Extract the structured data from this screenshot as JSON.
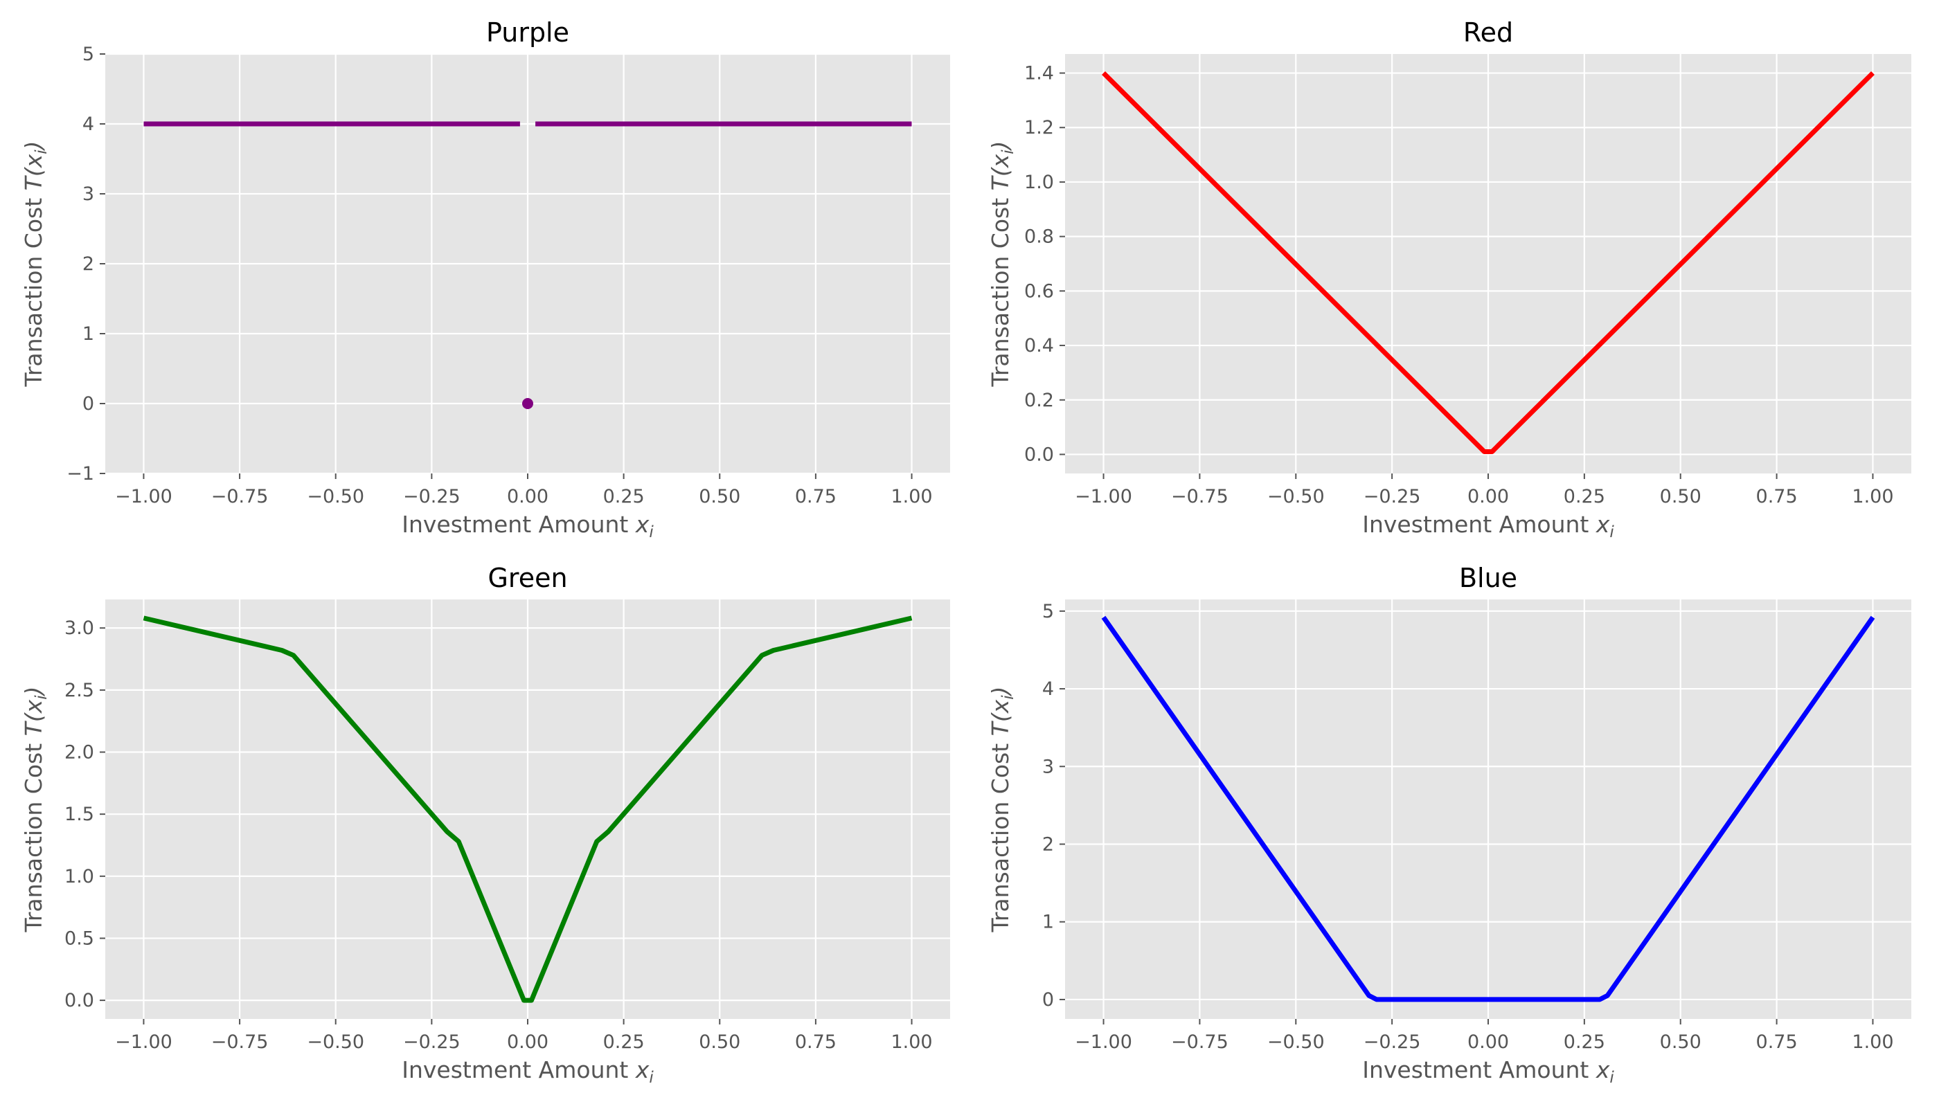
{
  "figure": {
    "background": "#ffffff",
    "axes_background": "#e5e5e5",
    "grid_color": "#ffffff"
  },
  "chart_data": [
    {
      "type": "line",
      "title": "Purple",
      "color": "#800080",
      "xlabel_text": "Investment Amount ",
      "xlabel_var": "x",
      "xlabel_sub": "i",
      "ylabel_text": "Transaction Cost ",
      "ylabel_var": "T(x",
      "ylabel_sub": "i",
      "ylabel_close": ")",
      "xlim": [
        -1.1,
        1.1
      ],
      "ylim": [
        -1,
        5
      ],
      "grid": true,
      "x_ticks": [
        -1.0,
        -0.75,
        -0.5,
        -0.25,
        0.0,
        0.25,
        0.5,
        0.75,
        1.0
      ],
      "x_tick_labels": [
        "−1.00",
        "−0.75",
        "−0.50",
        "−0.25",
        "0.00",
        "0.25",
        "0.50",
        "0.75",
        "1.00"
      ],
      "y_ticks": [
        -1,
        0,
        1,
        2,
        3,
        4,
        5
      ],
      "y_tick_labels": [
        "−1",
        "0",
        "1",
        "2",
        "3",
        "4",
        "5"
      ],
      "series": [
        {
          "x": [
            -1.0,
            -0.02
          ],
          "y": [
            4,
            4
          ]
        },
        {
          "x": [
            0.02,
            1.0
          ],
          "y": [
            4,
            4
          ]
        }
      ],
      "points": [
        {
          "x": 0.0,
          "y": 0.0
        }
      ]
    },
    {
      "type": "line",
      "title": "Red",
      "color": "#ff0000",
      "xlabel_text": "Investment Amount ",
      "xlabel_var": "x",
      "xlabel_sub": "i",
      "ylabel_text": "Transaction Cost ",
      "ylabel_var": "T(x",
      "ylabel_sub": "i",
      "ylabel_close": ")",
      "xlim": [
        -1.1,
        1.1
      ],
      "ylim": [
        -0.07,
        1.47
      ],
      "grid": true,
      "x_ticks": [
        -1.0,
        -0.75,
        -0.5,
        -0.25,
        0.0,
        0.25,
        0.5,
        0.75,
        1.0
      ],
      "x_tick_labels": [
        "−1.00",
        "−0.75",
        "−0.50",
        "−0.25",
        "0.00",
        "0.25",
        "0.50",
        "0.75",
        "1.00"
      ],
      "y_ticks": [
        0.0,
        0.2,
        0.4,
        0.6,
        0.8,
        1.0,
        1.2,
        1.4
      ],
      "y_tick_labels": [
        "0.0",
        "0.2",
        "0.4",
        "0.6",
        "0.8",
        "1.0",
        "1.2",
        "1.4"
      ],
      "series": [
        {
          "x": [
            -1.0,
            -0.01,
            0.01,
            1.0
          ],
          "y": [
            1.4,
            0.01,
            0.01,
            1.4
          ]
        }
      ],
      "points": []
    },
    {
      "type": "line",
      "title": "Green",
      "color": "#008000",
      "xlabel_text": "Investment Amount ",
      "xlabel_var": "x",
      "xlabel_sub": "i",
      "ylabel_text": "Transaction Cost ",
      "ylabel_var": "T(x",
      "ylabel_sub": "i",
      "ylabel_close": ")",
      "xlim": [
        -1.1,
        1.1
      ],
      "ylim": [
        -0.15,
        3.23
      ],
      "grid": true,
      "x_ticks": [
        -1.0,
        -0.75,
        -0.5,
        -0.25,
        0.0,
        0.25,
        0.5,
        0.75,
        1.0
      ],
      "x_tick_labels": [
        "−1.00",
        "−0.75",
        "−0.50",
        "−0.25",
        "0.00",
        "0.25",
        "0.50",
        "0.75",
        "1.00"
      ],
      "y_ticks": [
        0.0,
        0.5,
        1.0,
        1.5,
        2.0,
        2.5,
        3.0
      ],
      "y_tick_labels": [
        "0.0",
        "0.5",
        "1.0",
        "1.5",
        "2.0",
        "2.5",
        "3.0"
      ],
      "series": [
        {
          "x": [
            -1.0,
            -0.64,
            -0.61,
            -0.21,
            -0.18,
            -0.01,
            0.01,
            0.18,
            0.21,
            0.61,
            0.64,
            1.0
          ],
          "y": [
            3.08,
            2.82,
            2.78,
            1.36,
            1.28,
            0.0,
            0.0,
            1.28,
            1.36,
            2.78,
            2.82,
            3.08
          ]
        }
      ],
      "points": []
    },
    {
      "type": "line",
      "title": "Blue",
      "color": "#0000ff",
      "xlabel_text": "Investment Amount ",
      "xlabel_var": "x",
      "xlabel_sub": "i",
      "ylabel_text": "Transaction Cost ",
      "ylabel_var": "T(x",
      "ylabel_sub": "i",
      "ylabel_close": ")",
      "xlim": [
        -1.1,
        1.1
      ],
      "ylim": [
        -0.25,
        5.15
      ],
      "grid": true,
      "x_ticks": [
        -1.0,
        -0.75,
        -0.5,
        -0.25,
        0.0,
        0.25,
        0.5,
        0.75,
        1.0
      ],
      "x_tick_labels": [
        "−1.00",
        "−0.75",
        "−0.50",
        "−0.25",
        "0.00",
        "0.25",
        "0.50",
        "0.75",
        "1.00"
      ],
      "y_ticks": [
        0,
        1,
        2,
        3,
        4,
        5
      ],
      "y_tick_labels": [
        "0",
        "1",
        "2",
        "3",
        "4",
        "5"
      ],
      "series": [
        {
          "x": [
            -1.0,
            -0.31,
            -0.29,
            0.29,
            0.31,
            1.0
          ],
          "y": [
            4.92,
            0.05,
            0.0,
            0.0,
            0.05,
            4.92
          ]
        }
      ],
      "points": []
    }
  ]
}
